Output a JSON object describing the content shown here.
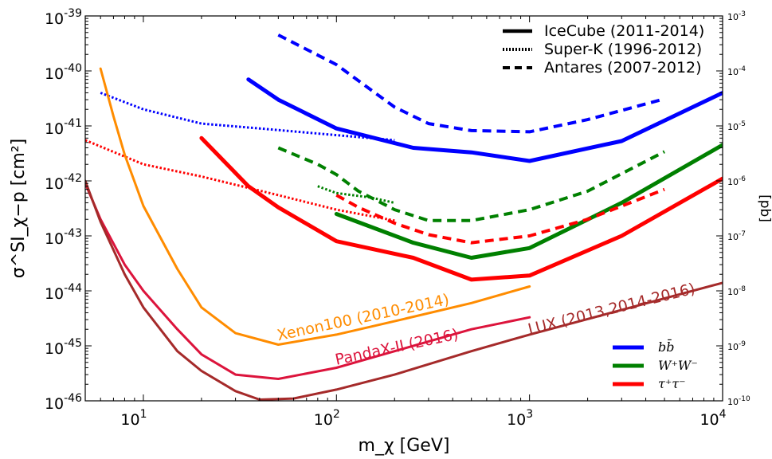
{
  "chart_data": {
    "type": "line",
    "xlabel": "m_χ [GeV]",
    "ylabel": "σ^SI_χ−p [cm²]",
    "ylabel_right": "[pb]",
    "x_scale": "log",
    "y_scale": "log",
    "xlim": [
      5,
      10000
    ],
    "ylim": [
      1e-46,
      1e-39
    ],
    "x_ticks": [
      {
        "v": 10,
        "b": "10",
        "e": "1"
      },
      {
        "v": 100,
        "b": "10",
        "e": "2"
      },
      {
        "v": 1000,
        "b": "10",
        "e": "3"
      },
      {
        "v": 10000,
        "b": "10",
        "e": "4"
      }
    ],
    "y_ticks": [
      {
        "v": 1e-46,
        "b": "10",
        "e": "-46"
      },
      {
        "v": 1e-45,
        "b": "10",
        "e": "-45"
      },
      {
        "v": 1e-44,
        "b": "10",
        "e": "-44"
      },
      {
        "v": 1e-43,
        "b": "10",
        "e": "-43"
      },
      {
        "v": 1e-42,
        "b": "10",
        "e": "-42"
      },
      {
        "v": 1e-41,
        "b": "10",
        "e": "-41"
      },
      {
        "v": 1e-40,
        "b": "10",
        "e": "-40"
      },
      {
        "v": 1e-39,
        "b": "10",
        "e": "-39"
      }
    ],
    "y_ticks_right": [
      {
        "v": 1e-46,
        "b": "10",
        "e": "-10"
      },
      {
        "v": 1e-45,
        "b": "10",
        "e": "-9"
      },
      {
        "v": 1e-44,
        "b": "10",
        "e": "-8"
      },
      {
        "v": 1e-43,
        "b": "10",
        "e": "-7"
      },
      {
        "v": 1e-42,
        "b": "10",
        "e": "-6"
      },
      {
        "v": 1e-41,
        "b": "10",
        "e": "-5"
      },
      {
        "v": 1e-40,
        "b": "10",
        "e": "-4"
      },
      {
        "v": 1e-39,
        "b": "10",
        "e": "-3"
      }
    ],
    "legend_styles": {
      "placement": "top-right",
      "entries": [
        {
          "label": "IceCube (2011-2014)",
          "style": "solid"
        },
        {
          "label": "Super-K (1996-2012)",
          "style": "dotted"
        },
        {
          "label": "Antares (2007-2012)",
          "style": "dashed"
        }
      ]
    },
    "legend_channels": {
      "placement": "bottom-right",
      "entries": [
        {
          "label": "bb̄",
          "color": "#0000ff"
        },
        {
          "label": "W⁺W⁻",
          "color": "#008000"
        },
        {
          "label": "τ⁺τ⁻",
          "color": "#ff0000"
        }
      ]
    },
    "series": [
      {
        "color": "#0000ff",
        "style": "solid",
        "width": 5,
        "x": [
          35,
          50,
          100,
          250,
          500,
          1000,
          3000,
          10000
        ],
        "y": [
          7e-41,
          3e-41,
          9e-42,
          4e-42,
          3.3e-42,
          2.3e-42,
          5.3e-42,
          4e-41
        ]
      },
      {
        "color": "#008000",
        "style": "solid",
        "width": 5,
        "x": [
          100,
          250,
          500,
          1000,
          3000,
          10000
        ],
        "y": [
          2.5e-43,
          7.5e-44,
          4e-44,
          6e-44,
          4e-43,
          4.5e-42
        ]
      },
      {
        "color": "#ff0000",
        "style": "solid",
        "width": 5,
        "x": [
          20,
          35,
          50,
          100,
          250,
          500,
          1000,
          3000,
          10000
        ],
        "y": [
          6e-42,
          8e-43,
          3.3e-43,
          8e-44,
          4e-44,
          1.6e-44,
          1.9e-44,
          1e-43,
          1.1e-42
        ]
      },
      {
        "color": "#0000ff",
        "style": "dashed",
        "width": 4,
        "x": [
          50,
          100,
          200,
          300,
          500,
          1000,
          2000,
          5000
        ],
        "y": [
          4.5e-40,
          1.3e-40,
          2.2e-41,
          1.1e-41,
          8.2e-42,
          7.8e-42,
          1.3e-41,
          3.1e-41
        ]
      },
      {
        "color": "#008000",
        "style": "dashed",
        "width": 4,
        "x": [
          50,
          80,
          100,
          130,
          200,
          300,
          500,
          1000,
          2000,
          5000
        ],
        "y": [
          4e-42,
          2e-42,
          1.3e-42,
          6.5e-43,
          3e-43,
          1.9e-43,
          1.9e-43,
          3e-43,
          6.5e-43,
          3.4e-42
        ]
      },
      {
        "color": "#ff0000",
        "style": "dashed",
        "width": 4,
        "x": [
          100,
          130,
          200,
          300,
          500,
          1000,
          2000,
          5000
        ],
        "y": [
          5.5e-43,
          3.3e-43,
          1.7e-43,
          1.05e-43,
          7.5e-44,
          1e-43,
          2e-43,
          7e-43
        ]
      },
      {
        "color": "#0000ff",
        "style": "dotted",
        "width": 3,
        "x": [
          6,
          10,
          20,
          40,
          100,
          200
        ],
        "y": [
          4e-41,
          2e-41,
          1.1e-41,
          9e-42,
          6.8e-42,
          5.5e-42
        ]
      },
      {
        "color": "#ff0000",
        "style": "dotted",
        "width": 3,
        "x": [
          5,
          10,
          20,
          50,
          100,
          200
        ],
        "y": [
          5.5e-42,
          2e-42,
          1.2e-42,
          5.5e-43,
          3e-43,
          1.9e-43
        ]
      },
      {
        "color": "#008000",
        "style": "dotted",
        "width": 3,
        "x": [
          80,
          100,
          150,
          200
        ],
        "y": [
          8e-43,
          6e-43,
          5e-43,
          4e-43
        ]
      },
      {
        "color": "#ff8c00",
        "style": "solid",
        "width": 3,
        "x": [
          6,
          7,
          8,
          10,
          15,
          20,
          30,
          50,
          100,
          200,
          500,
          1000
        ],
        "y": [
          1.1e-40,
          1.5e-41,
          3e-42,
          3.5e-43,
          2.5e-44,
          5e-45,
          1.7e-45,
          1.05e-45,
          1.6e-45,
          2.8e-45,
          6e-45,
          1.2e-44
        ]
      },
      {
        "color": "#dc143c",
        "style": "solid",
        "width": 3,
        "x": [
          5,
          6,
          8,
          10,
          15,
          20,
          30,
          50,
          100,
          200,
          500,
          1000
        ],
        "y": [
          9e-43,
          2e-43,
          3e-44,
          1e-44,
          2e-45,
          7e-46,
          3e-46,
          2.5e-46,
          4e-46,
          8e-46,
          2e-45,
          3.3e-45
        ]
      },
      {
        "color": "#a52a2a",
        "style": "solid",
        "width": 3,
        "x": [
          5,
          6,
          8,
          10,
          15,
          20,
          30,
          40,
          60,
          100,
          200,
          500,
          1000,
          3000,
          10000
        ],
        "y": [
          1e-42,
          1.8e-43,
          2e-44,
          5e-45,
          8e-46,
          3.5e-46,
          1.5e-46,
          1.05e-46,
          1.1e-46,
          1.6e-46,
          3e-46,
          8e-46,
          1.6e-45,
          4.5e-45,
          1.4e-44
        ]
      }
    ],
    "annotations": [
      {
        "text": "Xenon100 (2010-2014)",
        "color": "#ff8c00",
        "x": 50,
        "y": 1.25e-45,
        "angle": -12
      },
      {
        "text": "PandaX-II (2016)",
        "color": "#dc143c",
        "x": 100,
        "y": 4.5e-46,
        "angle": -12
      },
      {
        "text": "LUX (2013,2014-2016)",
        "color": "#a52a2a",
        "x": 1000,
        "y": 1.6e-45,
        "angle": -14
      }
    ]
  }
}
